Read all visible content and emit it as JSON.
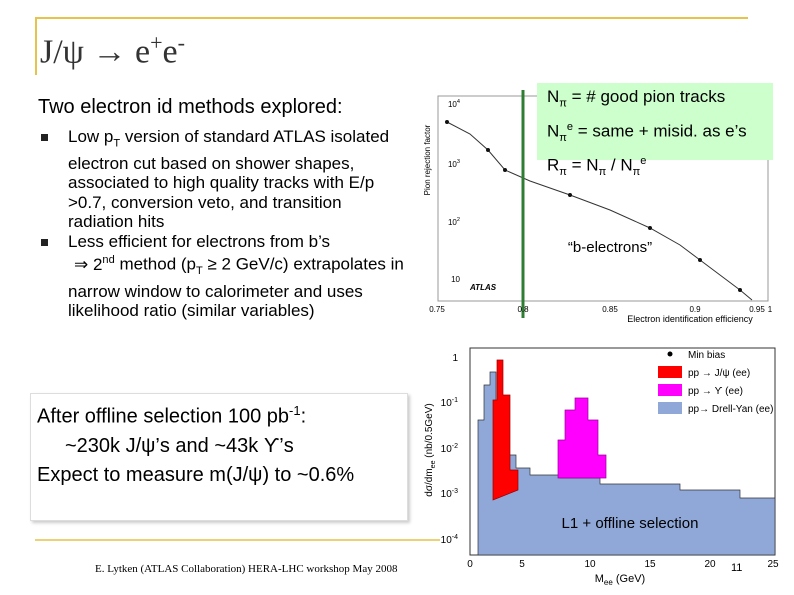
{
  "title": [
    "J/ψ → e",
    "+",
    "e",
    "-"
  ],
  "intro": "Two electron id methods explored:",
  "bullets": [
    [
      "Low p",
      "T",
      " version of standard ATLAS isolated electron cut based on shower shapes, associated to high quality tracks with E/p >0.7, conversion veto, and transition radiation hits"
    ],
    [
      "Less efficient for electrons from b’s"
    ]
  ],
  "second_method": [
    "⇒ 2",
    "nd",
    " method (p",
    "T",
    " ≥ 2 GeV/c) extrapolates in narrow window to calorimeter and uses likelihood ratio (similar variables)"
  ],
  "definitions": [
    [
      "N",
      "π",
      " = # good pion tracks"
    ],
    [
      "N",
      "π",
      "e",
      " =  same + misid. as e’s"
    ],
    [
      "R",
      "π",
      " = N",
      "π",
      " / N",
      "π",
      "e"
    ]
  ],
  "summary": [
    [
      "After offline selection 100 pb",
      "-1",
      ":"
    ],
    [
      "~230k J/ψ’s and ~43k ϒ’s"
    ],
    [
      "Expect to measure m(J/ψ) to ~0.6%"
    ]
  ],
  "rejection_plot": {
    "ylabel": "Pion rejection factor",
    "xlabel": "Electron identification efficiency",
    "yticks": [
      [
        "10",
        "4"
      ],
      [
        "10",
        "3"
      ],
      [
        "10",
        "2"
      ],
      [
        "10"
      ]
    ],
    "xticks": [
      "0.75",
      "0.8",
      "0.85",
      "0.9",
      "0.95",
      "1"
    ],
    "tag": "ATLAS",
    "annotation": "“b-electrons”"
  },
  "mass_plot": {
    "ylabel": "dσ/dm",
    "ylabel_sub": "ee",
    "ylabel_unit": " (nb/0.5GeV)",
    "yticks": [
      [
        "1"
      ],
      [
        "10",
        "-1"
      ],
      [
        "10",
        "-2"
      ],
      [
        "10",
        "-3"
      ],
      [
        "10",
        "-4"
      ]
    ],
    "xticks": [
      "0",
      "5",
      "10",
      "15",
      "20",
      "25"
    ],
    "xlabel": "M",
    "xlabel_sub": "ee",
    "xlabel_unit": " (GeV)",
    "legend": [
      "Min bias",
      "pp → J/ψ (ee)",
      "pp → ϒ (ee)",
      "pp→ Drell-Yan (ee)"
    ],
    "annotation": "L1 + offline selection"
  },
  "footer": "E. Lytken (ATLAS Collaboration) HERA-LHC workshop May 2008",
  "page_number": "11"
}
